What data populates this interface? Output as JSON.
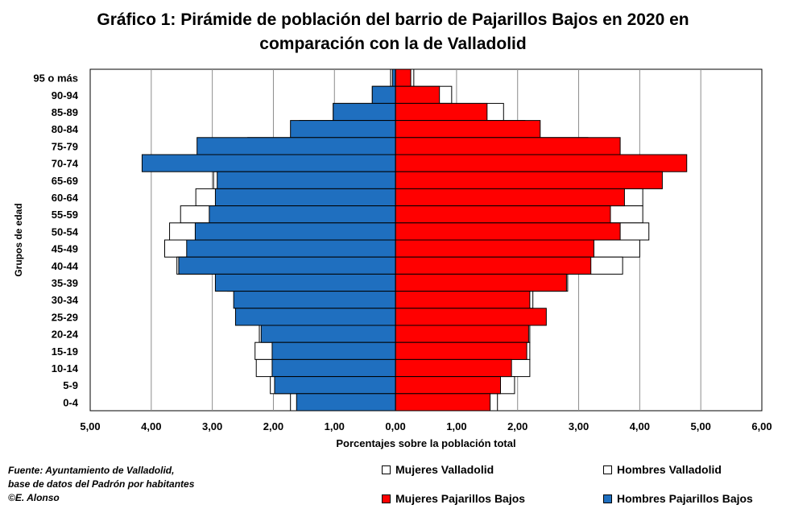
{
  "title_lines": [
    "Gráfico 1: Pirámide de población del barrio de Pajarillos Bajos en 2020 en",
    "comparación con la de Valladolid"
  ],
  "source_lines": [
    "Fuente: Ayuntamiento de Valladolid,",
    "base de datos del Padrón por habitantes",
    "©E. Alonso"
  ],
  "colors": {
    "hombres_pajarillos": "#1F6FBF",
    "mujeres_pajarillos": "#FF0000",
    "valladolid": "#FFFFFF"
  },
  "chart_data": {
    "type": "bar",
    "orientation": "horizontal",
    "title": "Gráfico 1: Pirámide de población del barrio de Pajarillos Bajos en 2020 en comparación con la de Valladolid",
    "xlabel": "Porcentajes sobre la población total",
    "ylabel": "Grupos de edad",
    "xlim": [
      -5,
      6
    ],
    "x_ticks": [
      "5,00",
      "4,00",
      "3,00",
      "2,00",
      "1,00",
      "0,00",
      "1,00",
      "2,00",
      "3,00",
      "4,00",
      "5,00",
      "6,00"
    ],
    "grid": "vertical",
    "legend_position": "bottom",
    "categories": [
      "95 o más",
      "90-94",
      "85-89",
      "80-84",
      "75-79",
      "70-74",
      "65-69",
      "60-64",
      "55-59",
      "50-54",
      "45-49",
      "40-44",
      "35-39",
      "30-34",
      "25-29",
      "20-24",
      "15-19",
      "10-14",
      "5-9",
      "0-4"
    ],
    "series": [
      {
        "name": "Mujeres Valladolid",
        "side": "right",
        "values": [
          0.3,
          0.92,
          1.77,
          2.12,
          3.15,
          3.62,
          3.65,
          4.05,
          4.05,
          4.15,
          4.0,
          3.72,
          2.82,
          2.25,
          2.2,
          2.2,
          2.2,
          2.2,
          1.95,
          1.67
        ]
      },
      {
        "name": "Hombres Valladolid",
        "side": "left",
        "values": [
          0.08,
          0.38,
          1.02,
          1.57,
          2.42,
          2.92,
          2.98,
          3.27,
          3.52,
          3.7,
          3.78,
          3.58,
          2.75,
          2.27,
          2.3,
          2.23,
          2.3,
          2.28,
          2.05,
          1.72
        ]
      },
      {
        "name": "Mujeres Pajarillos Bajos",
        "side": "right",
        "values": [
          0.25,
          0.72,
          1.5,
          2.37,
          3.68,
          4.77,
          4.37,
          3.75,
          3.52,
          3.68,
          3.25,
          3.2,
          2.8,
          2.2,
          2.47,
          2.18,
          2.15,
          1.9,
          1.72,
          1.55
        ]
      },
      {
        "name": "Hombres Pajarillos Bajos",
        "side": "left",
        "values": [
          0.05,
          0.38,
          1.02,
          1.72,
          3.25,
          4.15,
          2.92,
          2.95,
          3.05,
          3.28,
          3.42,
          3.55,
          2.95,
          2.65,
          2.62,
          2.2,
          2.02,
          2.02,
          1.98,
          1.62
        ]
      }
    ]
  }
}
